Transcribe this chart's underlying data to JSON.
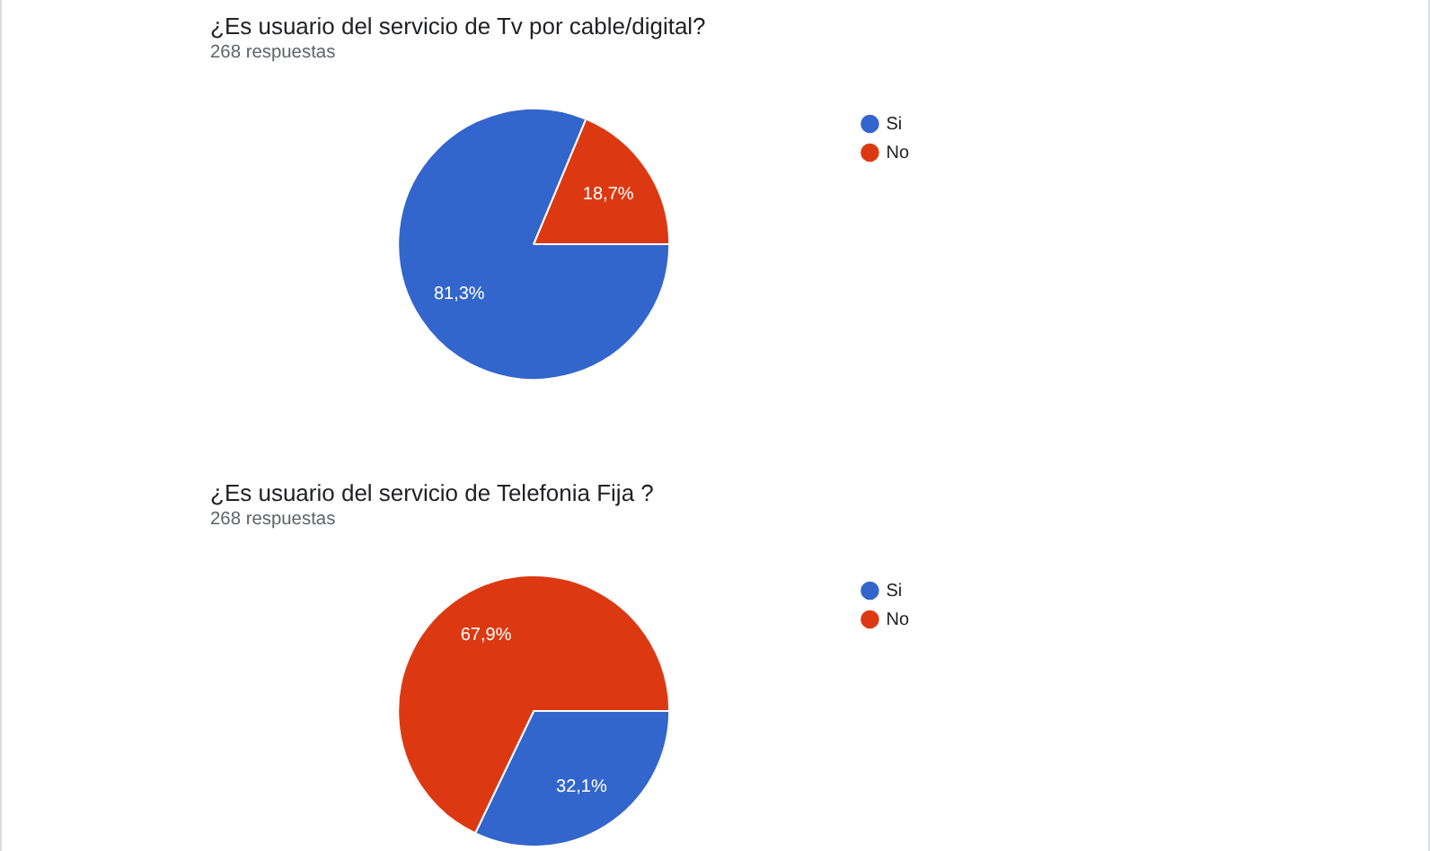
{
  "chart_data": [
    {
      "type": "pie",
      "title": "¿Es usuario del servicio de Tv por cable/digital?",
      "subtitle": "268 respuestas",
      "categories": [
        "Si",
        "No"
      ],
      "values": [
        81.3,
        18.7
      ],
      "colors": [
        "#3366cc",
        "#dc3912"
      ],
      "value_labels": [
        "81,3%",
        "18,7%"
      ],
      "legend": "top right"
    },
    {
      "type": "pie",
      "title": "¿Es usuario del servicio de Telefonia Fija ?",
      "subtitle": "268 respuestas",
      "categories": [
        "Si",
        "No"
      ],
      "values": [
        32.1,
        67.9
      ],
      "colors": [
        "#3366cc",
        "#dc3912"
      ],
      "value_labels": [
        "32,1%",
        "67,9%"
      ],
      "legend": "top right"
    }
  ]
}
